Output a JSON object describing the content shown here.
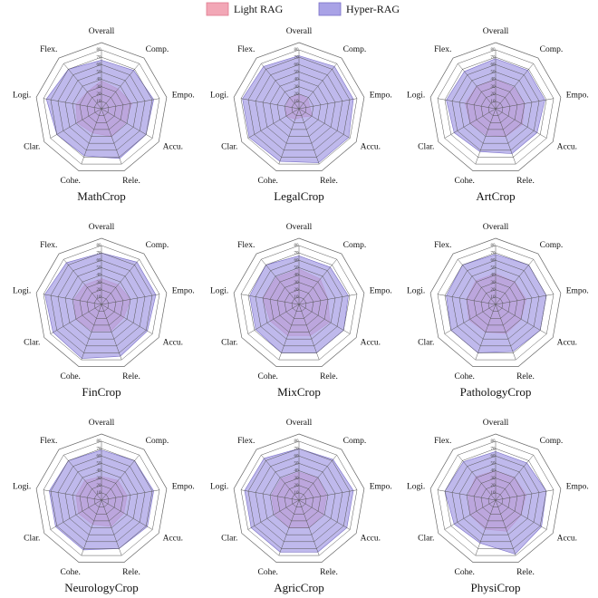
{
  "chart_data": [
    {
      "type": "radar",
      "title": "MathCrop",
      "categories": [
        "Overall",
        "Comp.",
        "Empo.",
        "Accu.",
        "Rele.",
        "Cohe.",
        "Clar.",
        "Logi.",
        "Flex."
      ],
      "ylim": [
        0,
        80
      ],
      "yticks": [
        10,
        20,
        30,
        40,
        50,
        60,
        70,
        80
      ],
      "series": [
        {
          "name": "Light RAG",
          "color": "#f2a7b6",
          "values": [
            38,
            35,
            42,
            38,
            40,
            35,
            38,
            35,
            30
          ]
        },
        {
          "name": "Hyper-RAG",
          "color": "#a9a2e6",
          "values": [
            66,
            68,
            72,
            70,
            72,
            68,
            70,
            76,
            70
          ]
        }
      ]
    },
    {
      "type": "radar",
      "title": "LegalCrop",
      "categories": [
        "Overall",
        "Comp.",
        "Empo.",
        "Accu.",
        "Rele.",
        "Cohe.",
        "Clar.",
        "Logi.",
        "Flex."
      ],
      "ylim": [
        0,
        80
      ],
      "yticks": [
        10,
        20,
        30,
        40,
        50,
        60,
        70,
        80
      ],
      "series": [
        {
          "name": "Light RAG",
          "color": "#f2a7b6",
          "values": [
            20,
            18,
            15,
            20,
            12,
            15,
            20,
            18,
            20
          ]
        },
        {
          "name": "Hyper-RAG",
          "color": "#a9a2e6",
          "values": [
            72,
            75,
            75,
            78,
            78,
            76,
            78,
            78,
            75
          ]
        }
      ]
    },
    {
      "type": "radar",
      "title": "ArtCrop",
      "categories": [
        "Overall",
        "Comp.",
        "Empo.",
        "Accu.",
        "Rele.",
        "Cohe.",
        "Clar.",
        "Logi.",
        "Flex."
      ],
      "ylim": [
        0,
        80
      ],
      "yticks": [
        10,
        20,
        30,
        40,
        50,
        60,
        70,
        80
      ],
      "series": [
        {
          "name": "Light RAG",
          "color": "#f2a7b6",
          "values": [
            40,
            38,
            40,
            42,
            40,
            38,
            40,
            42,
            40
          ]
        },
        {
          "name": "Hyper-RAG",
          "color": "#a9a2e6",
          "values": [
            68,
            68,
            68,
            65,
            65,
            62,
            65,
            68,
            66
          ]
        }
      ]
    },
    {
      "type": "radar",
      "title": "FinCrop",
      "categories": [
        "Overall",
        "Comp.",
        "Empo.",
        "Accu.",
        "Rele.",
        "Cohe.",
        "Clar.",
        "Logi.",
        "Flex."
      ],
      "ylim": [
        0,
        80
      ],
      "yticks": [
        10,
        20,
        30,
        40,
        50,
        60,
        70,
        80
      ],
      "series": [
        {
          "name": "Light RAG",
          "color": "#f2a7b6",
          "values": [
            35,
            35,
            40,
            35,
            38,
            38,
            40,
            38,
            35
          ]
        },
        {
          "name": "Hyper-RAG",
          "color": "#a9a2e6",
          "values": [
            70,
            75,
            75,
            72,
            75,
            78,
            76,
            78,
            74
          ]
        }
      ]
    },
    {
      "type": "radar",
      "title": "MixCrop",
      "categories": [
        "Overall",
        "Comp.",
        "Empo.",
        "Accu.",
        "Rele.",
        "Cohe.",
        "Clar.",
        "Logi.",
        "Flex."
      ],
      "ylim": [
        0,
        80
      ],
      "yticks": [
        10,
        20,
        30,
        40,
        50,
        60,
        70,
        80
      ],
      "series": [
        {
          "name": "Light RAG",
          "color": "#f2a7b6",
          "values": [
            48,
            45,
            40,
            48,
            45,
            45,
            45,
            50,
            48
          ]
        },
        {
          "name": "Hyper-RAG",
          "color": "#a9a2e6",
          "values": [
            66,
            66,
            68,
            70,
            70,
            70,
            68,
            68,
            70
          ]
        }
      ]
    },
    {
      "type": "radar",
      "title": "PathologyCrop",
      "categories": [
        "Overall",
        "Comp.",
        "Empo.",
        "Accu.",
        "Rele.",
        "Cohe.",
        "Clar.",
        "Logi.",
        "Flex."
      ],
      "ylim": [
        0,
        80
      ],
      "yticks": [
        10,
        20,
        30,
        40,
        50,
        60,
        70,
        80
      ],
      "series": [
        {
          "name": "Light RAG",
          "color": "#f2a7b6",
          "values": [
            42,
            40,
            42,
            40,
            42,
            40,
            42,
            40,
            42
          ]
        },
        {
          "name": "Hyper-RAG",
          "color": "#a9a2e6",
          "values": [
            68,
            70,
            70,
            70,
            68,
            70,
            70,
            68,
            70
          ]
        }
      ]
    },
    {
      "type": "radar",
      "title": "NeurologyCrop",
      "categories": [
        "Overall",
        "Comp.",
        "Empo.",
        "Accu.",
        "Rele.",
        "Cohe.",
        "Clar.",
        "Logi.",
        "Flex."
      ],
      "ylim": [
        0,
        80
      ],
      "yticks": [
        10,
        20,
        30,
        40,
        50,
        60,
        70,
        80
      ],
      "series": [
        {
          "name": "Light RAG",
          "color": "#f2a7b6",
          "values": [
            32,
            35,
            35,
            35,
            38,
            35,
            36,
            35,
            35
          ]
        },
        {
          "name": "Hyper-RAG",
          "color": "#a9a2e6",
          "values": [
            68,
            70,
            72,
            72,
            70,
            72,
            72,
            72,
            70
          ]
        }
      ]
    },
    {
      "type": "radar",
      "title": "AgricCrop",
      "categories": [
        "Overall",
        "Comp.",
        "Empo.",
        "Accu.",
        "Rele.",
        "Cohe.",
        "Clar.",
        "Logi.",
        "Flex."
      ],
      "ylim": [
        0,
        80
      ],
      "yticks": [
        10,
        20,
        30,
        40,
        50,
        60,
        70,
        80
      ],
      "series": [
        {
          "name": "Light RAG",
          "color": "#f2a7b6",
          "values": [
            38,
            40,
            38,
            38,
            40,
            40,
            38,
            38,
            38
          ]
        },
        {
          "name": "Hyper-RAG",
          "color": "#a9a2e6",
          "values": [
            70,
            72,
            75,
            75,
            75,
            75,
            75,
            75,
            74
          ]
        }
      ]
    },
    {
      "type": "radar",
      "title": "PhysiCrop",
      "categories": [
        "Overall",
        "Comp.",
        "Empo.",
        "Accu.",
        "Rele.",
        "Cohe.",
        "Clar.",
        "Logi.",
        "Flex."
      ],
      "ylim": [
        0,
        80
      ],
      "yticks": [
        10,
        20,
        30,
        40,
        50,
        60,
        70,
        80
      ],
      "series": [
        {
          "name": "Light RAG",
          "color": "#f2a7b6",
          "values": [
            40,
            40,
            42,
            40,
            45,
            42,
            40,
            38,
            42
          ]
        },
        {
          "name": "Hyper-RAG",
          "color": "#a9a2e6",
          "values": [
            66,
            66,
            70,
            72,
            78,
            62,
            65,
            70,
            68
          ]
        }
      ]
    }
  ]
}
